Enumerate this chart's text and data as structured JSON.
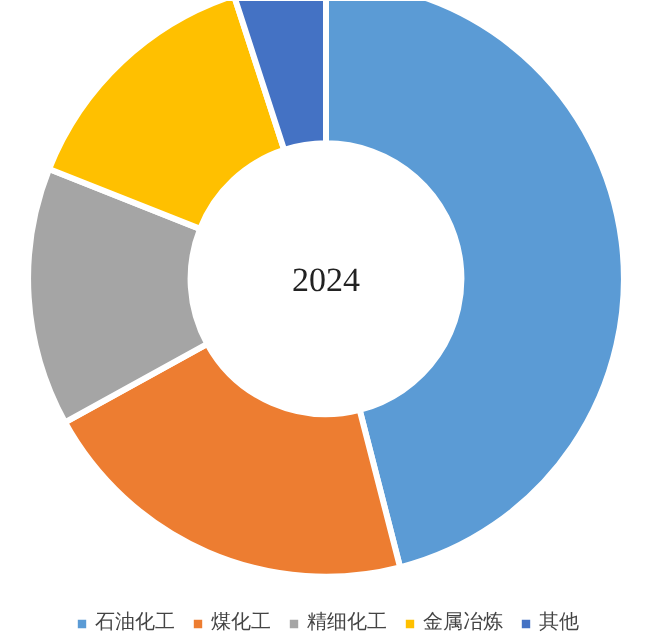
{
  "chart_data": {
    "type": "donut",
    "title": "2024",
    "categories": [
      "石油化工",
      "煤化工",
      "精细化工",
      "金属冶炼",
      "其他"
    ],
    "values": [
      46,
      21,
      14,
      14,
      5
    ],
    "colors": [
      "#5b9bd5",
      "#ed7d31",
      "#a5a5a5",
      "#ffc000",
      "#4472c4"
    ],
    "legend": "bottom"
  }
}
